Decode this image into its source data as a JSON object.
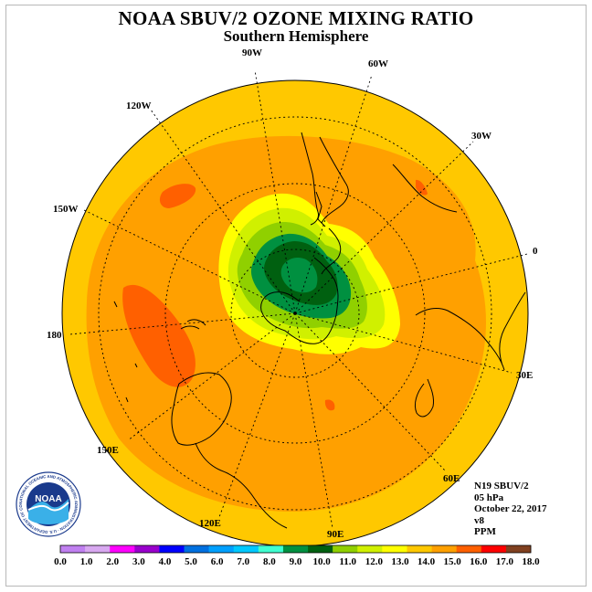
{
  "title": "NOAA SBUV/2 OZONE MIXING RATIO",
  "subtitle": "Southern Hemisphere",
  "longitude_labels": [
    {
      "text": "90W"
    },
    {
      "text": "60W"
    },
    {
      "text": "30W"
    },
    {
      "text": "0"
    },
    {
      "text": "30E"
    },
    {
      "text": "60E"
    },
    {
      "text": "90E"
    },
    {
      "text": "120E"
    },
    {
      "text": "150E"
    },
    {
      "text": "180"
    },
    {
      "text": "150W"
    },
    {
      "text": "120W"
    }
  ],
  "info": {
    "satellite": "N19 SBUV/2",
    "pressure": "05 hPa",
    "date": "October 22, 2017",
    "version": "v8",
    "units": "PPM"
  },
  "logo": {
    "text": "NOAA",
    "ring_text": "NATIONAL OCEANIC AND ATMOSPHERIC ADMINISTRATION · U.S. DEPARTMENT OF COMMERCE"
  },
  "colorbar": {
    "colors": [
      "#c080f0",
      "#d8a8f0",
      "#ff00ff",
      "#9900cc",
      "#0000ff",
      "#0070e0",
      "#00a0ff",
      "#00c8ff",
      "#40ffd0",
      "#009040",
      "#006010",
      "#90d000",
      "#d0f000",
      "#ffff00",
      "#ffc800",
      "#ffa000",
      "#ff6000",
      "#ff0000",
      "#804020"
    ],
    "ticks": [
      "0.0",
      "1.0",
      "2.0",
      "3.0",
      "4.0",
      "5.0",
      "6.0",
      "7.0",
      "8.0",
      "9.0",
      "10.0",
      "11.0",
      "12.0",
      "13.0",
      "14.0",
      "15.0",
      "16.0",
      "17.0",
      "18.0"
    ]
  }
}
